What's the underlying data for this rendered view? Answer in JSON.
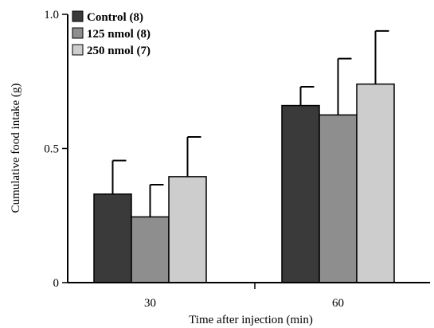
{
  "chart_data": {
    "type": "bar",
    "title": "",
    "xlabel": "Time after injection (min)",
    "ylabel": "Cumulative food intake (g)",
    "ylim": [
      0,
      1.0
    ],
    "yticks": [
      {
        "value": 0,
        "label": "0"
      },
      {
        "value": 0.5,
        "label": "0.5"
      },
      {
        "value": 1.0,
        "label": "1.0"
      }
    ],
    "categories": [
      "30",
      "60"
    ],
    "series": [
      {
        "name": "Control (8)",
        "color": "#3a3a3a",
        "values": [
          0.33,
          0.66
        ],
        "errors": [
          0.125,
          0.07
        ]
      },
      {
        "name": "125 nmol (8)",
        "color": "#8e8e8e",
        "values": [
          0.245,
          0.625
        ],
        "errors": [
          0.12,
          0.21
        ]
      },
      {
        "name": "250 nmol (7)",
        "color": "#cdcdcd",
        "values": [
          0.395,
          0.74
        ],
        "errors": [
          0.148,
          0.198
        ]
      }
    ],
    "legend_position": "top-left",
    "grid": false
  }
}
